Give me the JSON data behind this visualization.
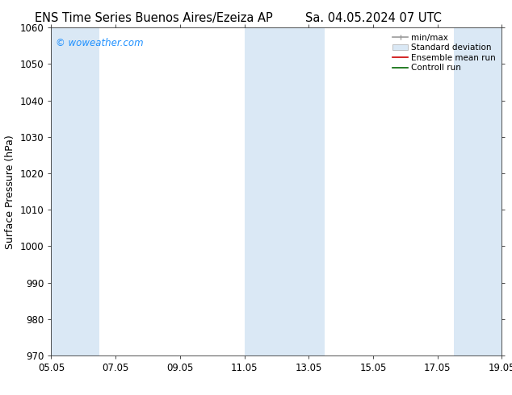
{
  "title_left": "ENS Time Series Buenos Aires/Ezeiza AP",
  "title_right": "Sa. 04.05.2024 07 UTC",
  "ylabel": "Surface Pressure (hPa)",
  "ylim": [
    970,
    1060
  ],
  "yticks": [
    970,
    980,
    990,
    1000,
    1010,
    1020,
    1030,
    1040,
    1050,
    1060
  ],
  "xtick_labels": [
    "05.05",
    "07.05",
    "09.05",
    "11.05",
    "13.05",
    "15.05",
    "17.05",
    "19.05"
  ],
  "xtick_positions": [
    0,
    2,
    4,
    6,
    8,
    10,
    12,
    14
  ],
  "x_start": 0,
  "x_end": 14,
  "watermark": "© woweather.com",
  "watermark_color": "#1e90ff",
  "bg_color": "#ffffff",
  "plot_bg_color": "#ffffff",
  "band_color": "#dae8f5",
  "band_positions": [
    {
      "x_start": 0.0,
      "x_end": 1.5
    },
    {
      "x_start": 6.0,
      "x_end": 8.5
    },
    {
      "x_start": 12.5,
      "x_end": 14.0
    }
  ],
  "title_fontsize": 10.5,
  "tick_fontsize": 8.5,
  "ylabel_fontsize": 9,
  "watermark_fontsize": 8.5,
  "legend_fontsize": 7.5
}
